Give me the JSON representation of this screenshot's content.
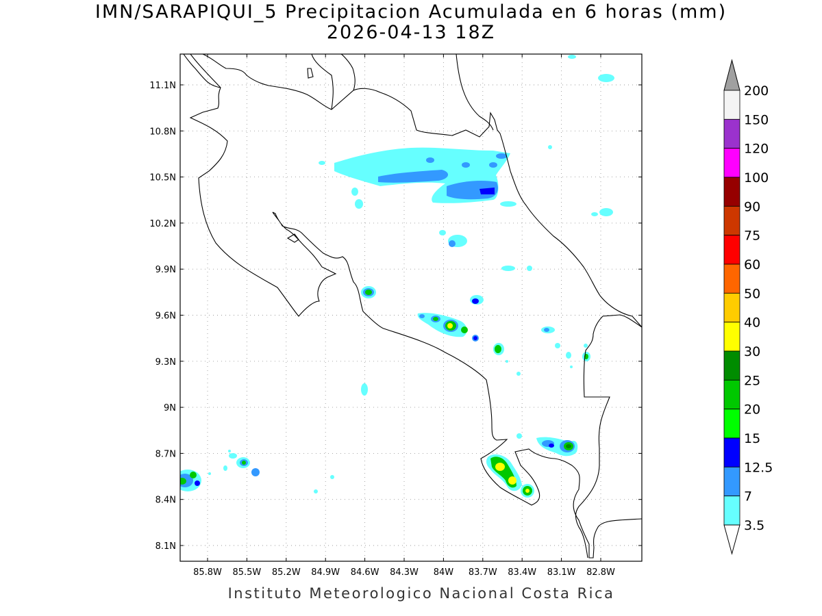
{
  "title": "IMN/SARAPIQUI_5 Precipitacion Acumulada en 6 horas (mm)",
  "subtitle": "2026-04-13 18Z",
  "footer": "Instituto Meteorologico Nacional Costa Rica",
  "map_data": {
    "lat_ticks": [
      "11.1N",
      "10.8N",
      "10.5N",
      "10.2N",
      "9.9N",
      "9.6N",
      "9.3N",
      "9N",
      "8.7N",
      "8.4N",
      "8.1N"
    ],
    "lon_ticks": [
      "85.8W",
      "85.5W",
      "85.2W",
      "84.9W",
      "84.6W",
      "84.3W",
      "84W",
      "83.7W",
      "83.4W",
      "83.1W",
      "82.8W"
    ],
    "grid": true,
    "grid_style": "dotted"
  },
  "legend": {
    "labels": [
      "200",
      "150",
      "120",
      "100",
      "90",
      "75",
      "60",
      "50",
      "40",
      "30",
      "25",
      "20",
      "15",
      "12.5",
      "7",
      "3.5"
    ],
    "colors": [
      "#f4f4f4",
      "#9b32cd",
      "#ff00ff",
      "#960000",
      "#cd3700",
      "#ff0000",
      "#ff6600",
      "#ffcc00",
      "#ffff00",
      "#008c00",
      "#00c800",
      "#00ff00",
      "#0000ff",
      "#3399ff",
      "#66ffff"
    ],
    "top_arrow_color": "#a0a0a0",
    "bottom_arrow_color": "#ffffff"
  }
}
